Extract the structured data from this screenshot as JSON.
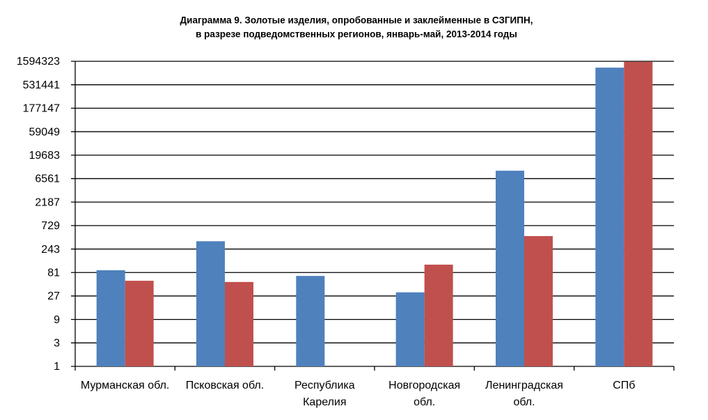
{
  "chart_data": {
    "type": "bar",
    "title": [
      "Диаграмма 9. Золотые изделия, опробованные и заклейменные в СЗГИПН,",
      "в разрезе  подведомственных регионов,  январь-май, 2013-2014 годы"
    ],
    "categories": [
      "Мурманская обл.",
      "Псковская обл.",
      "Республика Карелия",
      "Новгородская обл.",
      "Ленинградская обл.",
      "СПб"
    ],
    "series": [
      {
        "color": "#4f81bd",
        "values": [
          90,
          350,
          69,
          32,
          9500,
          1185000
        ]
      },
      {
        "color": "#c0504d",
        "values": [
          55,
          52,
          null,
          117,
          445,
          1557000
        ]
      }
    ],
    "log_base": 3,
    "ylim": [
      1,
      1594323
    ],
    "yticks": [
      1,
      3,
      9,
      27,
      81,
      243,
      729,
      2187,
      6561,
      19683,
      59049,
      177147,
      531441,
      1594323
    ],
    "grid": true
  }
}
